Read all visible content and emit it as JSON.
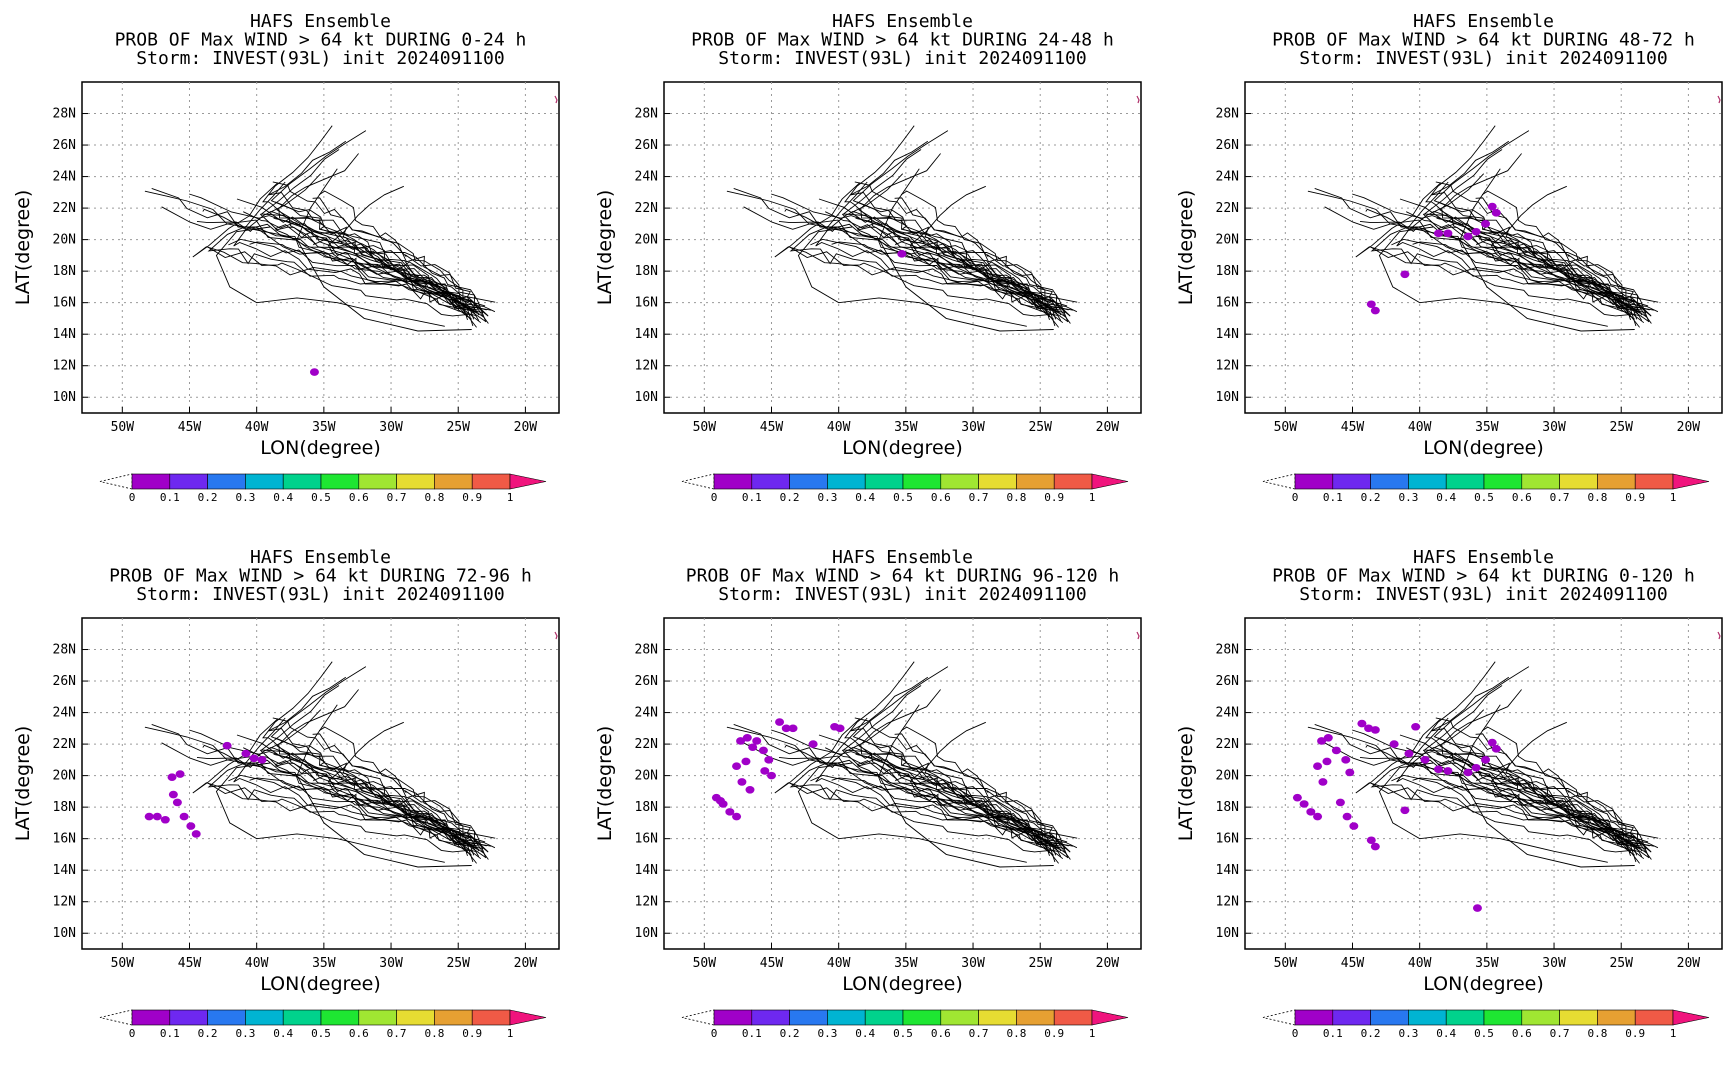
{
  "figure": {
    "colorbar": {
      "levels": [
        0,
        0.1,
        0.2,
        0.3,
        0.4,
        0.5,
        0.6,
        0.7,
        0.8,
        0.9,
        1
      ],
      "labels": [
        "0",
        "0.1",
        "0.2",
        "0.3",
        "0.4",
        "0.5",
        "0.6",
        "0.7",
        "0.8",
        "0.9",
        "1"
      ],
      "colors": [
        "#a000c8",
        "#6e28f0",
        "#2878f0",
        "#00b4d2",
        "#00d28c",
        "#1ee632",
        "#a0e632",
        "#e6dc32",
        "#e6a032",
        "#f05a46",
        "#f0147d"
      ]
    },
    "track_color": "#000000"
  },
  "chart_data": [
    {
      "type": "track-map",
      "title_lines": [
        "HAFS Ensemble",
        "PROB OF Max WIND > 64 kt DURING  0-24 h",
        "Storm: INVEST(93L) init 2024091100"
      ],
      "xlabel": "LON(degree)",
      "ylabel": "LAT(degree)",
      "xlim": [
        -53,
        -17.5
      ],
      "ylim": [
        9,
        30
      ],
      "xticks": [
        -50,
        -45,
        -40,
        -35,
        -30,
        -25,
        -20
      ],
      "xtick_labels": [
        "50W",
        "45W",
        "40W",
        "35W",
        "30W",
        "25W",
        "20W"
      ],
      "yticks": [
        10,
        12,
        14,
        16,
        18,
        20,
        22,
        24,
        26,
        28
      ],
      "ytick_labels": [
        "10N",
        "12N",
        "14N",
        "16N",
        "18N",
        "20N",
        "22N",
        "24N",
        "26N",
        "28N"
      ],
      "grid": true,
      "prob_areas": [
        {
          "lon": -35.7,
          "lat": 11.6,
          "prob": 0.05
        }
      ]
    },
    {
      "type": "track-map",
      "title_lines": [
        "HAFS Ensemble",
        "PROB OF Max WIND > 64 kt DURING 24-48 h",
        "Storm: INVEST(93L) init 2024091100"
      ],
      "xlabel": "LON(degree)",
      "ylabel": "LAT(degree)",
      "xlim": [
        -53,
        -17.5
      ],
      "ylim": [
        9,
        30
      ],
      "xticks": [
        -50,
        -45,
        -40,
        -35,
        -30,
        -25,
        -20
      ],
      "xtick_labels": [
        "50W",
        "45W",
        "40W",
        "35W",
        "30W",
        "25W",
        "20W"
      ],
      "yticks": [
        10,
        12,
        14,
        16,
        18,
        20,
        22,
        24,
        26,
        28
      ],
      "ytick_labels": [
        "10N",
        "12N",
        "14N",
        "16N",
        "18N",
        "20N",
        "22N",
        "24N",
        "26N",
        "28N"
      ],
      "grid": true,
      "prob_areas": [
        {
          "lon": -35.3,
          "lat": 19.1,
          "prob": 0.05
        }
      ]
    },
    {
      "type": "track-map",
      "title_lines": [
        "HAFS Ensemble",
        "PROB OF Max WIND > 64 kt DURING 48-72 h",
        "Storm: INVEST(93L) init 2024091100"
      ],
      "xlabel": "LON(degree)",
      "ylabel": "LAT(degree)",
      "xlim": [
        -53,
        -17.5
      ],
      "ylim": [
        9,
        30
      ],
      "xticks": [
        -50,
        -45,
        -40,
        -35,
        -30,
        -25,
        -20
      ],
      "xtick_labels": [
        "50W",
        "45W",
        "40W",
        "35W",
        "30W",
        "25W",
        "20W"
      ],
      "yticks": [
        10,
        12,
        14,
        16,
        18,
        20,
        22,
        24,
        26,
        28
      ],
      "ytick_labels": [
        "10N",
        "12N",
        "14N",
        "16N",
        "18N",
        "20N",
        "22N",
        "24N",
        "26N",
        "28N"
      ],
      "grid": true,
      "prob_areas": [
        {
          "lon": -43.6,
          "lat": 15.9,
          "prob": 0.05
        },
        {
          "lon": -43.3,
          "lat": 15.5,
          "prob": 0.05
        },
        {
          "lon": -41.1,
          "lat": 17.8,
          "prob": 0.05
        },
        {
          "lon": -38.6,
          "lat": 20.4,
          "prob": 0.05
        },
        {
          "lon": -37.9,
          "lat": 20.4,
          "prob": 0.05
        },
        {
          "lon": -36.4,
          "lat": 20.2,
          "prob": 0.05
        },
        {
          "lon": -35.8,
          "lat": 20.5,
          "prob": 0.05
        },
        {
          "lon": -35.1,
          "lat": 21.0,
          "prob": 0.05
        },
        {
          "lon": -34.6,
          "lat": 22.1,
          "prob": 0.05
        },
        {
          "lon": -34.3,
          "lat": 21.7,
          "prob": 0.05
        }
      ]
    },
    {
      "type": "track-map",
      "title_lines": [
        "HAFS Ensemble",
        "PROB OF Max WIND > 64 kt DURING 72-96 h",
        "Storm: INVEST(93L) init 2024091100"
      ],
      "xlabel": "LON(degree)",
      "ylabel": "LAT(degree)",
      "xlim": [
        -53,
        -17.5
      ],
      "ylim": [
        9,
        30
      ],
      "xticks": [
        -50,
        -45,
        -40,
        -35,
        -30,
        -25,
        -20
      ],
      "xtick_labels": [
        "50W",
        "45W",
        "40W",
        "35W",
        "30W",
        "25W",
        "20W"
      ],
      "yticks": [
        10,
        12,
        14,
        16,
        18,
        20,
        22,
        24,
        26,
        28
      ],
      "ytick_labels": [
        "10N",
        "12N",
        "14N",
        "16N",
        "18N",
        "20N",
        "22N",
        "24N",
        "26N",
        "28N"
      ],
      "grid": true,
      "prob_areas": [
        {
          "lon": -48.0,
          "lat": 17.4,
          "prob": 0.05
        },
        {
          "lon": -47.4,
          "lat": 17.4,
          "prob": 0.05
        },
        {
          "lon": -46.8,
          "lat": 17.2,
          "prob": 0.05
        },
        {
          "lon": -46.2,
          "lat": 18.8,
          "prob": 0.05
        },
        {
          "lon": -45.9,
          "lat": 18.3,
          "prob": 0.05
        },
        {
          "lon": -45.4,
          "lat": 17.4,
          "prob": 0.05
        },
        {
          "lon": -44.9,
          "lat": 16.8,
          "prob": 0.05
        },
        {
          "lon": -44.5,
          "lat": 16.3,
          "prob": 0.05
        },
        {
          "lon": -46.3,
          "lat": 19.9,
          "prob": 0.05
        },
        {
          "lon": -45.7,
          "lat": 20.1,
          "prob": 0.05
        },
        {
          "lon": -42.2,
          "lat": 21.9,
          "prob": 0.05
        },
        {
          "lon": -40.8,
          "lat": 21.4,
          "prob": 0.05
        },
        {
          "lon": -40.2,
          "lat": 21.1,
          "prob": 0.05
        },
        {
          "lon": -39.6,
          "lat": 21.0,
          "prob": 0.05
        }
      ]
    },
    {
      "type": "track-map",
      "title_lines": [
        "HAFS Ensemble",
        "PROB OF Max WIND > 64 kt DURING 96-120 h",
        "Storm: INVEST(93L) init 2024091100"
      ],
      "xlabel": "LON(degree)",
      "ylabel": "LAT(degree)",
      "xlim": [
        -53,
        -17.5
      ],
      "ylim": [
        9,
        30
      ],
      "xticks": [
        -50,
        -45,
        -40,
        -35,
        -30,
        -25,
        -20
      ],
      "xtick_labels": [
        "50W",
        "45W",
        "40W",
        "35W",
        "30W",
        "25W",
        "20W"
      ],
      "yticks": [
        10,
        12,
        14,
        16,
        18,
        20,
        22,
        24,
        26,
        28
      ],
      "ytick_labels": [
        "10N",
        "12N",
        "14N",
        "16N",
        "18N",
        "20N",
        "22N",
        "24N",
        "26N",
        "28N"
      ],
      "grid": true,
      "prob_areas": [
        {
          "lon": -49.1,
          "lat": 18.6,
          "prob": 0.05
        },
        {
          "lon": -48.6,
          "lat": 18.2,
          "prob": 0.05
        },
        {
          "lon": -48.1,
          "lat": 17.7,
          "prob": 0.05
        },
        {
          "lon": -47.6,
          "lat": 17.4,
          "prob": 0.05
        },
        {
          "lon": -48.8,
          "lat": 18.4,
          "prob": 0.05
        },
        {
          "lon": -47.6,
          "lat": 20.6,
          "prob": 0.05
        },
        {
          "lon": -47.2,
          "lat": 19.6,
          "prob": 0.05
        },
        {
          "lon": -46.6,
          "lat": 19.1,
          "prob": 0.05
        },
        {
          "lon": -46.9,
          "lat": 20.9,
          "prob": 0.05
        },
        {
          "lon": -46.4,
          "lat": 21.8,
          "prob": 0.05
        },
        {
          "lon": -47.3,
          "lat": 22.2,
          "prob": 0.05
        },
        {
          "lon": -46.8,
          "lat": 22.4,
          "prob": 0.05
        },
        {
          "lon": -46.1,
          "lat": 22.2,
          "prob": 0.05
        },
        {
          "lon": -45.6,
          "lat": 21.6,
          "prob": 0.05
        },
        {
          "lon": -45.2,
          "lat": 21.0,
          "prob": 0.05
        },
        {
          "lon": -45.0,
          "lat": 20.0,
          "prob": 0.05
        },
        {
          "lon": -45.5,
          "lat": 20.3,
          "prob": 0.05
        },
        {
          "lon": -44.4,
          "lat": 23.4,
          "prob": 0.05
        },
        {
          "lon": -43.9,
          "lat": 23.0,
          "prob": 0.05
        },
        {
          "lon": -43.4,
          "lat": 23.0,
          "prob": 0.05
        },
        {
          "lon": -41.9,
          "lat": 22.0,
          "prob": 0.05
        },
        {
          "lon": -40.3,
          "lat": 23.1,
          "prob": 0.05
        },
        {
          "lon": -39.9,
          "lat": 23.0,
          "prob": 0.05
        }
      ]
    },
    {
      "type": "track-map",
      "title_lines": [
        "HAFS Ensemble",
        "PROB OF Max WIND > 64 kt DURING 0-120 h",
        "Storm: INVEST(93L) init 2024091100"
      ],
      "xlabel": "LON(degree)",
      "ylabel": "LAT(degree)",
      "xlim": [
        -53,
        -17.5
      ],
      "ylim": [
        9,
        30
      ],
      "xticks": [
        -50,
        -45,
        -40,
        -35,
        -30,
        -25,
        -20
      ],
      "xtick_labels": [
        "50W",
        "45W",
        "40W",
        "35W",
        "30W",
        "25W",
        "20W"
      ],
      "yticks": [
        10,
        12,
        14,
        16,
        18,
        20,
        22,
        24,
        26,
        28
      ],
      "ytick_labels": [
        "10N",
        "12N",
        "14N",
        "16N",
        "18N",
        "20N",
        "22N",
        "24N",
        "26N",
        "28N"
      ],
      "grid": true,
      "prob_areas": [
        {
          "lon": -49.1,
          "lat": 18.6,
          "prob": 0.05
        },
        {
          "lon": -48.6,
          "lat": 18.2,
          "prob": 0.05
        },
        {
          "lon": -48.1,
          "lat": 17.7,
          "prob": 0.05
        },
        {
          "lon": -47.6,
          "lat": 17.4,
          "prob": 0.05
        },
        {
          "lon": -47.6,
          "lat": 20.6,
          "prob": 0.05
        },
        {
          "lon": -47.2,
          "lat": 19.6,
          "prob": 0.05
        },
        {
          "lon": -46.9,
          "lat": 20.9,
          "prob": 0.05
        },
        {
          "lon": -47.3,
          "lat": 22.2,
          "prob": 0.05
        },
        {
          "lon": -46.8,
          "lat": 22.4,
          "prob": 0.05
        },
        {
          "lon": -46.2,
          "lat": 21.6,
          "prob": 0.05
        },
        {
          "lon": -45.5,
          "lat": 21.0,
          "prob": 0.05
        },
        {
          "lon": -45.2,
          "lat": 20.2,
          "prob": 0.05
        },
        {
          "lon": -45.9,
          "lat": 18.3,
          "prob": 0.05
        },
        {
          "lon": -45.4,
          "lat": 17.4,
          "prob": 0.05
        },
        {
          "lon": -44.9,
          "lat": 16.8,
          "prob": 0.05
        },
        {
          "lon": -43.6,
          "lat": 15.9,
          "prob": 0.05
        },
        {
          "lon": -43.3,
          "lat": 15.5,
          "prob": 0.05
        },
        {
          "lon": -44.3,
          "lat": 23.3,
          "prob": 0.05
        },
        {
          "lon": -43.8,
          "lat": 23.0,
          "prob": 0.05
        },
        {
          "lon": -43.3,
          "lat": 22.9,
          "prob": 0.05
        },
        {
          "lon": -41.9,
          "lat": 22.0,
          "prob": 0.05
        },
        {
          "lon": -40.3,
          "lat": 23.1,
          "prob": 0.05
        },
        {
          "lon": -41.1,
          "lat": 17.8,
          "prob": 0.05
        },
        {
          "lon": -38.6,
          "lat": 20.4,
          "prob": 0.05
        },
        {
          "lon": -37.9,
          "lat": 20.3,
          "prob": 0.05
        },
        {
          "lon": -36.4,
          "lat": 20.2,
          "prob": 0.05
        },
        {
          "lon": -35.8,
          "lat": 20.5,
          "prob": 0.05
        },
        {
          "lon": -35.1,
          "lat": 21.0,
          "prob": 0.05
        },
        {
          "lon": -34.6,
          "lat": 22.1,
          "prob": 0.05
        },
        {
          "lon": -34.3,
          "lat": 21.7,
          "prob": 0.05
        },
        {
          "lon": -40.8,
          "lat": 21.4,
          "prob": 0.05
        },
        {
          "lon": -39.6,
          "lat": 21.0,
          "prob": 0.05
        },
        {
          "lon": -35.7,
          "lat": 11.6,
          "prob": 0.05
        }
      ]
    }
  ]
}
